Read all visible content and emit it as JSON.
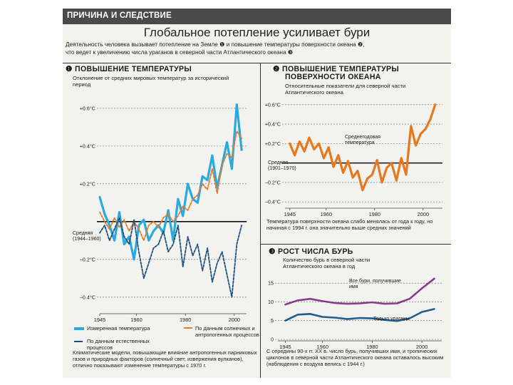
{
  "header": {
    "section": "ПРИЧИНА И СЛЕДСТВИЕ",
    "title": "Глобальное потепление усиливает бури"
  },
  "intro": {
    "line1": "Деятельность человека вызывает потепление на Земле ❶ и повышение температуры поверхности океана ❷,",
    "line2": "что ведет к увеличению числа ураганов в северной части Атлантического океана ❸"
  },
  "panel1": {
    "title": "❶ ПОВЫШЕНИЕ ТЕМПЕРАТУРЫ",
    "subtitle": "Отклонение от средних мировых температур за исторический период",
    "baseline_label": "Средняя (1944–1960)",
    "legend": [
      {
        "label": "Измеренная температура"
      },
      {
        "label": "По данным солнечных и антропогенных процессов"
      },
      {
        "label": "По данным естественных процессов"
      }
    ],
    "note": "Климатические модели, повышающие влияние антропогенных парниковых газов и природных факторов (солнечный свет, извержения вулканов), отлично показывают изменение температуры с 1970 г.",
    "colors": {
      "measured": "#2aa9de",
      "combined": "#e07a2e",
      "natural": "#1f4f7f"
    },
    "chart_data": {
      "type": "line",
      "xlabel": "",
      "ylabel": "",
      "xlim": [
        1945,
        2005
      ],
      "ylim": [
        -0.48,
        0.66
      ],
      "xticks": [
        {
          "v": 1945,
          "label": "1945"
        },
        {
          "v": 1960,
          "label": "1960"
        },
        {
          "v": 1980,
          "label": "1980"
        },
        {
          "v": 2000,
          "label": "2000"
        }
      ],
      "yticks": [
        {
          "v": 0.6,
          "label": "+0.6°C"
        },
        {
          "v": 0.4,
          "label": "+0.4°C"
        },
        {
          "v": 0.2,
          "label": "+0.2°C"
        },
        {
          "v": -0.2,
          "label": "–0.2°C"
        },
        {
          "v": -0.4,
          "label": "–0.4°C"
        }
      ],
      "baseline": 0,
      "x": [
        1945,
        1947,
        1949,
        1951,
        1953,
        1955,
        1957,
        1959,
        1961,
        1963,
        1965,
        1967,
        1969,
        1971,
        1973,
        1975,
        1977,
        1979,
        1981,
        1983,
        1985,
        1987,
        1989,
        1991,
        1993,
        1995,
        1997,
        1999,
        2001,
        2003
      ],
      "series": [
        {
          "name": "Измеренная температура",
          "color": "#2aa9de",
          "values": [
            0.13,
            0.04,
            -0.02,
            -0.1,
            0.05,
            -0.12,
            -0.08,
            -0.2,
            -0.02,
            0.01,
            -0.1,
            -0.05,
            -0.02,
            -0.06,
            0.06,
            -0.1,
            0.12,
            0.03,
            0.2,
            0.12,
            0.1,
            0.24,
            0.22,
            0.35,
            0.18,
            0.3,
            0.42,
            0.28,
            0.62,
            0.38
          ]
        },
        {
          "name": "По данным солнечных и антропогенных процессов",
          "color": "#e07a2e",
          "values": [
            0.05,
            0.0,
            -0.04,
            0.02,
            -0.03,
            0.01,
            -0.05,
            0.0,
            -0.04,
            -0.1,
            -0.02,
            0.0,
            -0.03,
            0.02,
            0.04,
            0.0,
            0.03,
            0.08,
            0.06,
            0.12,
            0.14,
            0.2,
            0.17,
            0.28,
            0.15,
            0.3,
            0.36,
            0.34,
            0.48,
            0.44
          ]
        },
        {
          "name": "По данным естественных процессов",
          "color": "#1f4f7f",
          "values": [
            -0.06,
            -0.02,
            -0.1,
            -0.04,
            0.02,
            -0.08,
            -0.12,
            0.01,
            -0.16,
            -0.3,
            -0.22,
            -0.14,
            -0.12,
            -0.05,
            -0.16,
            -0.12,
            -0.02,
            -0.24,
            -0.08,
            -0.18,
            -0.12,
            -0.26,
            -0.14,
            -0.32,
            -0.22,
            -0.16,
            -0.28,
            -0.4,
            -0.12,
            -0.02
          ]
        }
      ]
    }
  },
  "panel2": {
    "title_line1": "❷ ПОВЫШЕНИЕ ТЕМПЕРАТУРЫ",
    "title_line2": "ПОВЕРХНОСТИ ОКЕАНА",
    "subtitle": "Относительные показатели для северной части Атлантического океана",
    "annotation": "Среднегодовая температура",
    "baseline_label": "Средняя (1901–1970)",
    "note": "Температура поверхности океана слабо менялась от года к году, но начиная с 1994 г. она значительно выше средних значений",
    "color": "#e8781e",
    "chart_data": {
      "type": "line",
      "xlim": [
        1943,
        2008
      ],
      "ylim": [
        -0.45,
        0.65
      ],
      "xticks": [
        {
          "v": 1945,
          "label": "1945"
        },
        {
          "v": 1960,
          "label": "1960"
        },
        {
          "v": 1980,
          "label": "1980"
        },
        {
          "v": 2000,
          "label": "2000"
        }
      ],
      "yticks": [
        {
          "v": 0.6,
          "label": "+0.6°C"
        },
        {
          "v": 0.4,
          "label": "+0.4°C"
        },
        {
          "v": 0.2,
          "label": "+0.2°C"
        },
        {
          "v": -0.2,
          "label": "–0.2°C"
        },
        {
          "v": -0.4,
          "label": "–0.4°C"
        }
      ],
      "baseline": 0,
      "x": [
        1945,
        1947,
        1949,
        1951,
        1953,
        1955,
        1957,
        1959,
        1961,
        1963,
        1965,
        1967,
        1969,
        1971,
        1973,
        1975,
        1977,
        1979,
        1981,
        1983,
        1985,
        1987,
        1989,
        1991,
        1993,
        1995,
        1997,
        1999,
        2001,
        2003,
        2005
      ],
      "series": [
        {
          "name": "Среднегодовая температура",
          "color": "#e8781e",
          "values": [
            0.2,
            0.08,
            0.22,
            0.12,
            0.26,
            0.14,
            0.2,
            0.05,
            0.16,
            -0.04,
            0.08,
            -0.1,
            0.02,
            -0.15,
            -0.08,
            -0.28,
            -0.16,
            -0.12,
            0.03,
            -0.2,
            -0.05,
            0.0,
            -0.18,
            0.05,
            -0.12,
            0.38,
            0.18,
            0.3,
            0.35,
            0.45,
            0.6
          ]
        }
      ]
    }
  },
  "panel3": {
    "title": "❸ РОСТ ЧИСЛА БУРЬ",
    "subtitle": "Количество бурь в северной части Атлантического океана в год",
    "label_all": "Все бури, получившие имя",
    "label_hurricanes": "Только ураганы",
    "note": "С середины 90-х гг. XX в. число бурь, получивших имя, и тропических циклонов в северной части Атлантического океана оставалось высоким (наблюдения с воздуха велись с 1944 г.)",
    "colors": {
      "all": "#8a3a8a",
      "hurricanes": "#1f5f8f"
    },
    "chart_data": {
      "type": "line",
      "xlim": [
        1942,
        2008
      ],
      "ylim": [
        0,
        17.5
      ],
      "xticks": [
        {
          "v": 1945,
          "label": "1945"
        },
        {
          "v": 1960,
          "label": "1960"
        },
        {
          "v": 1980,
          "label": "1980"
        },
        {
          "v": 2000,
          "label": "2000"
        }
      ],
      "yticks": [
        {
          "v": 15,
          "label": "15"
        },
        {
          "v": 10,
          "label": "10"
        },
        {
          "v": 5,
          "label": "5"
        },
        {
          "v": 0,
          "label": "0"
        }
      ],
      "x": [
        1945,
        1950,
        1955,
        1960,
        1965,
        1970,
        1975,
        1980,
        1985,
        1990,
        1995,
        2000,
        2005
      ],
      "series": [
        {
          "name": "Все бури, получившие имя",
          "color": "#8a3a8a",
          "values": [
            9.3,
            10.4,
            10.8,
            10.2,
            9.7,
            9.5,
            9.6,
            9.9,
            9.5,
            9.6,
            10.8,
            13.6,
            16.2
          ]
        },
        {
          "name": "Только ураганы",
          "color": "#1f5f8f",
          "values": [
            5.0,
            6.6,
            6.8,
            6.0,
            5.8,
            5.4,
            5.7,
            5.6,
            5.2,
            4.9,
            5.6,
            7.3,
            8.1
          ]
        }
      ]
    }
  }
}
